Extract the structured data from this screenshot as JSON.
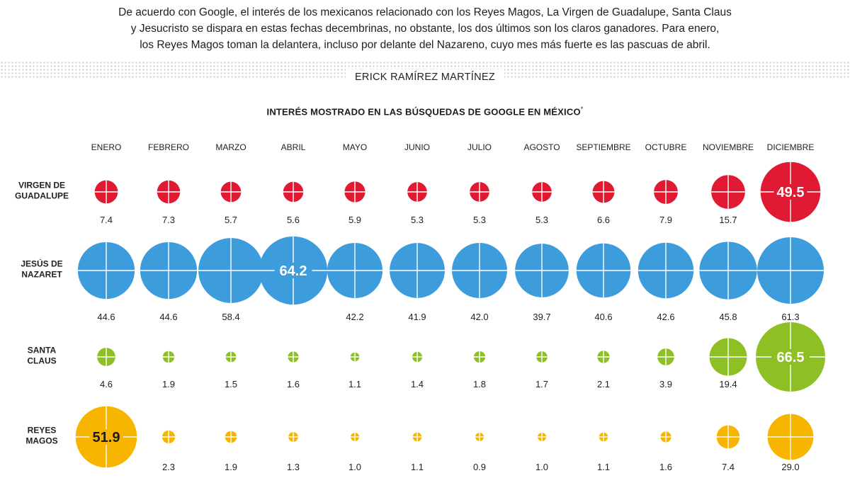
{
  "intro": {
    "lines": [
      "De acuerdo con Google, el interés de los mexicanos relacionado con los Reyes Magos, La Virgen de Guadalupe, Santa Claus",
      "y Jesucristo se dispara en estas fechas decembrinas, no obstante, los dos últimos  son los claros ganadores. Para enero,",
      "los Reyes Magos toman la delantera, incluso por delante del Nazareno, cuyo mes más fuerte es las pascuas de abril."
    ]
  },
  "byline": "ERICK RAMÍREZ MARTÍNEZ",
  "chart_data": {
    "type": "bubble-grid",
    "title": "INTERÉS MOSTRADO EN LAS BÚSQUEDAS DE GOOGLE EN MÉXICO",
    "title_mark": "*",
    "categories": [
      "ENERO",
      "FEBRERO",
      "MARZO",
      "ABRIL",
      "MAYO",
      "JUNIO",
      "JULIO",
      "AGOSTO",
      "SEPTIEMBRE",
      "OCTUBRE",
      "NOVIEMBRE",
      "DICIEMBRE"
    ],
    "series": [
      {
        "name": "VIRGEN DE GUADALUPE",
        "label_lines": [
          "VIRGEN DE",
          "GUADALUPE"
        ],
        "color": "#e01a32",
        "values": [
          7.4,
          7.3,
          5.7,
          5.6,
          5.9,
          5.3,
          5.3,
          5.3,
          6.6,
          7.9,
          15.7,
          49.5
        ],
        "labels": [
          "7.4",
          "7.3",
          "5.7",
          "5.6",
          "5.9",
          "5.3",
          "5.3",
          "5.3",
          "6.6",
          "7.9",
          "15.7",
          "49.5"
        ],
        "peak_index": 11
      },
      {
        "name": "JESÚS DE NAZARET",
        "label_lines": [
          "JESÚS DE",
          "NAZARET"
        ],
        "color": "#3d9ddc",
        "values": [
          44.6,
          44.6,
          58.4,
          64.2,
          42.2,
          41.9,
          42.0,
          39.7,
          40.6,
          42.6,
          45.8,
          61.3
        ],
        "labels": [
          "44.6",
          "44.6",
          "58.4",
          "64.2",
          "42.2",
          "41.9",
          "42.0",
          "39.7",
          "40.6",
          "42.6",
          "45.8",
          "61.3"
        ],
        "peak_index": 3
      },
      {
        "name": "SANTA CLAUS",
        "label_lines": [
          "SANTA",
          "CLAUS"
        ],
        "color": "#8ebf24",
        "values": [
          4.6,
          1.9,
          1.5,
          1.6,
          1.1,
          1.4,
          1.8,
          1.7,
          2.1,
          3.9,
          19.4,
          66.5
        ],
        "labels": [
          "4.6",
          "1.9",
          "1.5",
          "1.6",
          "1.1",
          "1.4",
          "1.8",
          "1.7",
          "2.1",
          "3.9",
          "19.4",
          "66.5"
        ],
        "peak_index": 11
      },
      {
        "name": "REYES MAGOS",
        "label_lines": [
          "REYES",
          "MAGOS"
        ],
        "color": "#f7b500",
        "values": [
          51.9,
          2.3,
          1.9,
          1.3,
          1.0,
          1.1,
          0.9,
          1.0,
          1.1,
          1.6,
          7.4,
          29.0
        ],
        "labels": [
          "51.9",
          "2.3",
          "1.9",
          "1.3",
          "1.0",
          "1.1",
          "0.9",
          "1.0",
          "1.1",
          "1.6",
          "7.4",
          "29.0"
        ],
        "peak_index": 0,
        "peak_text_color": "#1c1c1c"
      }
    ]
  }
}
